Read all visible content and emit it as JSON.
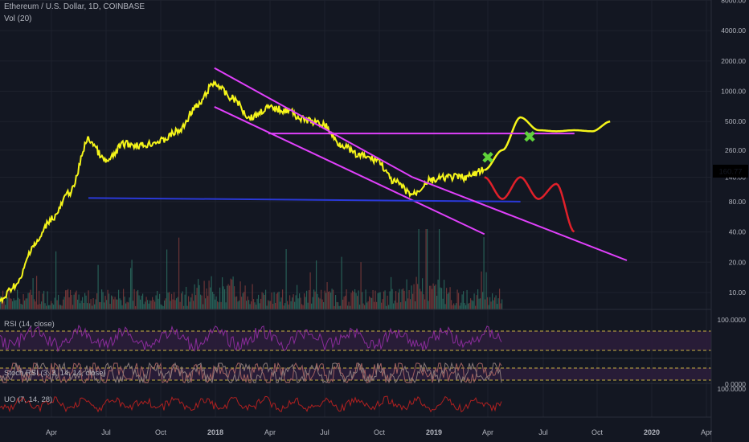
{
  "header": {
    "symbol_line": "Ethereum / U.S. Dollar, 1D, COINBASE",
    "volume_label": "Vol (20)",
    "rsi_label": "RSI (14, close)",
    "stoch_label": "Stoch RSI (3, 3, 14, 14, close)",
    "uo_label": "UO (7, 14, 28)"
  },
  "price_axis": {
    "ticks": [
      "8000.00",
      "4000.00",
      "2000.00",
      "1000.00",
      "500.00",
      "260.00",
      "140.00",
      "80.00",
      "40.00",
      "20.00",
      "10.00"
    ],
    "current_price": "160.77",
    "current_price_color": "#f5f51a"
  },
  "indicator_axis": {
    "rsi_top": "100.0000",
    "stoch_top": "0.0000",
    "uo_top": "100.0000"
  },
  "time_axis": {
    "labels": [
      "Apr",
      "Jul",
      "Oct",
      "2018",
      "Apr",
      "Jul",
      "Oct",
      "2019",
      "Apr",
      "Jul",
      "Oct",
      "2020",
      "Apr"
    ]
  },
  "colors": {
    "background": "#131722",
    "price_line": "#f5f51a",
    "trend_lines": "#e040fb",
    "support_line": "#2a39d8",
    "bearish_projection": "#e0202a",
    "bullish_projection": "#f5f51a",
    "marker": "#5fd33a",
    "rsi": "#8a2c9a",
    "stoch": "#a06060",
    "uo": "#b02020"
  },
  "markers": [
    "✖",
    "✖"
  ],
  "chart_data": [
    {
      "type": "line",
      "title": "Ethereum / U.S. Dollar, 1D, COINBASE",
      "scale": "log",
      "ylim": [
        5,
        8000
      ],
      "x": [
        "2017-01",
        "2017-02",
        "2017-03",
        "2017-04",
        "2017-05",
        "2017-06",
        "2017-07",
        "2017-08",
        "2017-09",
        "2017-10",
        "2017-11",
        "2017-12",
        "2018-01",
        "2018-02",
        "2018-03",
        "2018-04",
        "2018-05",
        "2018-06",
        "2018-07",
        "2018-08",
        "2018-09",
        "2018-10",
        "2018-11",
        "2018-12",
        "2019-01",
        "2019-02",
        "2019-03",
        "2019-04",
        "2019-05",
        "2019-06",
        "2019-07",
        "2019-08",
        "2019-09",
        "2019-10",
        "2019-11"
      ],
      "series": [
        {
          "name": "price",
          "values": [
            8,
            12,
            30,
            55,
            100,
            330,
            200,
            300,
            290,
            320,
            400,
            700,
            1200,
            850,
            550,
            680,
            650,
            520,
            470,
            300,
            230,
            210,
            125,
            95,
            130,
            140,
            140,
            165,
            null,
            null,
            null,
            null,
            null,
            null,
            null
          ]
        },
        {
          "name": "bullish projection",
          "values": [
            null,
            null,
            null,
            null,
            null,
            null,
            null,
            null,
            null,
            null,
            null,
            null,
            null,
            null,
            null,
            null,
            null,
            null,
            null,
            null,
            null,
            null,
            null,
            null,
            null,
            null,
            null,
            165,
            260,
            550,
            410,
            400,
            410,
            400,
            500
          ]
        },
        {
          "name": "bearish projection",
          "values": [
            null,
            null,
            null,
            null,
            null,
            null,
            null,
            null,
            null,
            null,
            null,
            null,
            null,
            null,
            null,
            null,
            null,
            null,
            null,
            null,
            null,
            null,
            null,
            null,
            null,
            null,
            null,
            140,
            85,
            140,
            85,
            120,
            40,
            null,
            null
          ]
        }
      ],
      "annotations": {
        "upper_channel": [
          [
            "2018-01",
            1700
          ],
          [
            "2018-12",
            140
          ]
        ],
        "lower_channel": [
          [
            "2018-01",
            700
          ],
          [
            "2019-04",
            38
          ]
        ],
        "horizontal_resistance": [
          [
            "2018-04",
            380
          ],
          [
            "2019-09",
            380
          ]
        ],
        "horizontal_support": [
          [
            "2017-06",
            87
          ],
          [
            "2019-06",
            80
          ]
        ]
      },
      "grid": true
    },
    {
      "type": "bar",
      "title": "Vol (20)",
      "note": "volume histogram, values not labelled"
    },
    {
      "type": "line",
      "title": "RSI (14, close)",
      "ylim": [
        0,
        100
      ],
      "bands": [
        30,
        70
      ]
    },
    {
      "type": "line",
      "title": "Stoch RSI (3, 3, 14, 14, close)",
      "ylim": [
        0,
        100
      ],
      "bands": [
        20,
        80
      ]
    },
    {
      "type": "line",
      "title": "UO (7, 14, 28)",
      "ylim": [
        0,
        100
      ]
    }
  ]
}
